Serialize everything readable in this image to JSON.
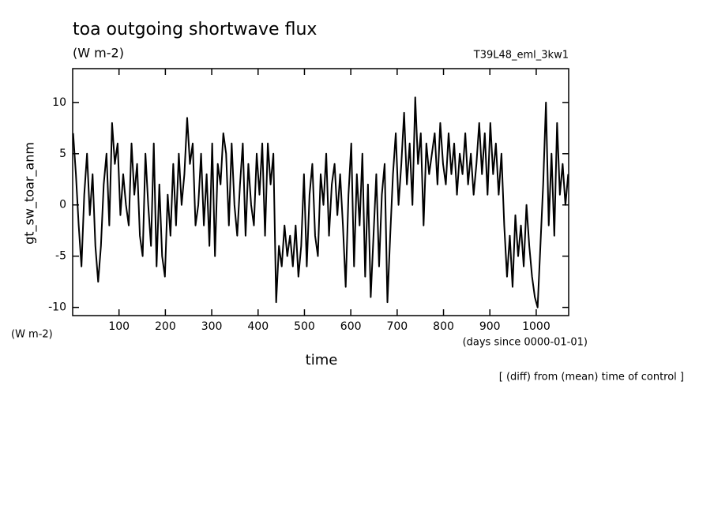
{
  "chart_data": {
    "type": "line",
    "title": "toa outgoing shortwave flux",
    "subtitle": "(W m-2)",
    "run_label": "T39L48_eml_3kw1",
    "y_label": "gt_sw_toar_anm",
    "y_unit": "(W m-2)",
    "x_label": "time",
    "x_unit": "(days since 0000-01-01)",
    "note": "[ (diff) from (mean) time of control ]",
    "color": "#000000",
    "xlim": [
      0,
      1070
    ],
    "xticks": [
      100,
      200,
      300,
      400,
      500,
      600,
      700,
      800,
      900,
      1000
    ],
    "ylim": [
      -10.8,
      13.3
    ],
    "yticks": [
      -10,
      -5,
      0,
      5,
      10
    ],
    "x": [
      1,
      7,
      13,
      19,
      25,
      31,
      37,
      43,
      49,
      55,
      61,
      67,
      73,
      79,
      85,
      91,
      97,
      103,
      109,
      115,
      121,
      127,
      133,
      139,
      145,
      151,
      157,
      163,
      169,
      175,
      181,
      187,
      193,
      199,
      205,
      211,
      217,
      223,
      229,
      235,
      241,
      247,
      253,
      259,
      265,
      271,
      277,
      283,
      289,
      295,
      301,
      307,
      313,
      319,
      325,
      331,
      337,
      343,
      349,
      355,
      361,
      367,
      373,
      379,
      385,
      391,
      397,
      403,
      409,
      415,
      421,
      427,
      433,
      439,
      445,
      451,
      457,
      463,
      469,
      475,
      481,
      487,
      493,
      499,
      505,
      511,
      517,
      523,
      529,
      535,
      541,
      547,
      553,
      559,
      565,
      571,
      577,
      583,
      589,
      595,
      601,
      607,
      613,
      619,
      625,
      631,
      637,
      643,
      649,
      655,
      661,
      667,
      673,
      679,
      685,
      691,
      697,
      703,
      709,
      715,
      721,
      727,
      733,
      739,
      745,
      751,
      757,
      763,
      769,
      775,
      781,
      787,
      793,
      799,
      805,
      811,
      817,
      823,
      829,
      835,
      841,
      847,
      853,
      859,
      865,
      871,
      877,
      883,
      889,
      895,
      901,
      907,
      913,
      919,
      925,
      931,
      937,
      943,
      949,
      955,
      961,
      967,
      973,
      979,
      985,
      991,
      997,
      1003,
      1009,
      1015,
      1021,
      1027,
      1033,
      1039,
      1045,
      1051,
      1057,
      1063,
      1069
    ],
    "values": [
      7,
      3,
      -2,
      -6,
      1,
      5,
      -1,
      3,
      -4,
      -7.5,
      -4,
      2,
      5,
      -2,
      8,
      4,
      6,
      -1,
      3,
      0,
      -2,
      6,
      1,
      4,
      -3,
      -5,
      5,
      0,
      -4,
      6,
      -6,
      2,
      -5,
      -7,
      1,
      -3,
      4,
      -2,
      5,
      0,
      3,
      8.5,
      4,
      6,
      -2,
      0,
      5,
      -2,
      3,
      -4,
      6,
      -5,
      4,
      2,
      7,
      5,
      -2,
      6,
      0,
      -3,
      2,
      6,
      -3,
      4,
      0,
      -2,
      5,
      1,
      6,
      -3,
      6,
      2,
      5,
      -9.5,
      -4,
      -6,
      -2,
      -5,
      -3,
      -6,
      -2,
      -7,
      -4,
      3,
      -6,
      1,
      4,
      -3,
      -5,
      3,
      0,
      5,
      -3,
      2,
      4,
      -1,
      3,
      -2,
      -8,
      1,
      6,
      -6,
      3,
      -2,
      5,
      -7,
      2,
      -9,
      -3,
      3,
      -6,
      1,
      4,
      -9.5,
      -3,
      3,
      7,
      0,
      4,
      9,
      2,
      6,
      0,
      10.5,
      4,
      7,
      -2,
      6,
      3,
      5,
      7,
      2,
      8,
      4,
      2,
      7,
      3,
      6,
      1,
      5,
      3,
      7,
      2,
      5,
      1,
      4,
      8,
      3,
      7,
      1,
      8,
      3,
      6,
      1,
      5,
      -2,
      -7,
      -3,
      -8,
      -1,
      -5,
      -2,
      -6,
      0,
      -4,
      -7,
      -9,
      -10,
      -4,
      2,
      10,
      -2,
      5,
      -3,
      8,
      1,
      4,
      0,
      3
    ]
  }
}
